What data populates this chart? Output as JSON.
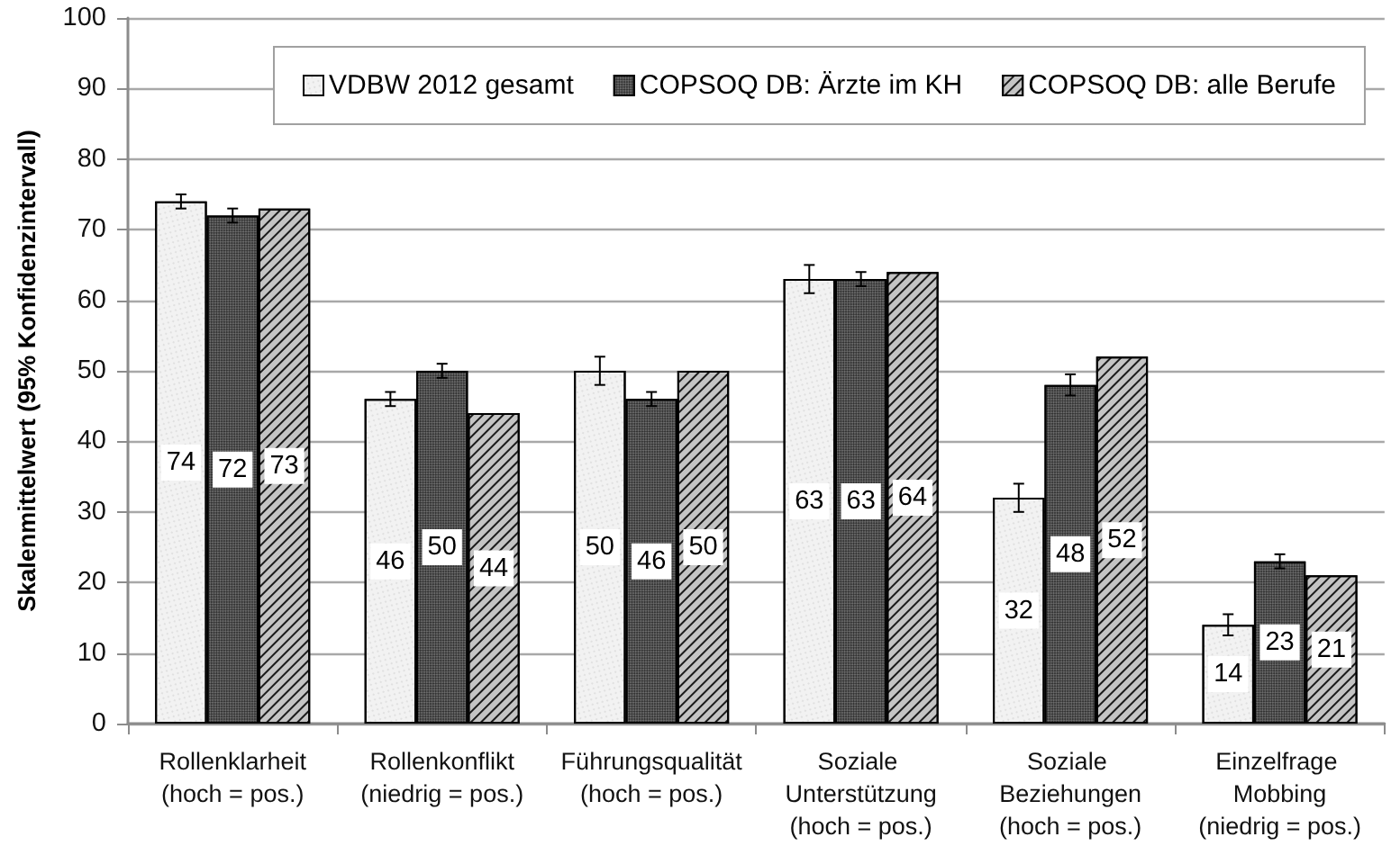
{
  "chart_data": {
    "type": "bar",
    "ylabel": "Skalenmittelwert (95% Konfidenzintervall)",
    "categories": [
      "Rollenklarheit (hoch = pos.)",
      "Rollenkonflikt (niedrig = pos.)",
      "Führungsqualität (hoch = pos.)",
      "Soziale Unterstützung (hoch = pos.)",
      "Soziale Beziehungen (hoch = pos.)",
      "Einzelfrage Mobbing (niedrig = pos.)"
    ],
    "series": [
      {
        "name": "VDBW 2012 gesamt",
        "color": "#f2f2f2",
        "values": [
          74,
          46,
          50,
          63,
          32,
          14
        ],
        "errors": [
          1,
          1,
          2,
          2,
          2,
          1.5
        ]
      },
      {
        "name": "COPSOQ DB: Ärzte im KH",
        "color": "#6b6b6b",
        "values": [
          72,
          50,
          46,
          63,
          48,
          23
        ],
        "errors": [
          1,
          1,
          1,
          1,
          1.5,
          1
        ]
      },
      {
        "name": "COPSOQ DB: alle Berufe",
        "color": "#c4c4c4",
        "values": [
          73,
          44,
          50,
          64,
          52,
          21
        ]
      }
    ],
    "ylim": [
      0,
      100
    ],
    "yticks": [
      0,
      10,
      20,
      30,
      40,
      50,
      60,
      70,
      80,
      90,
      100
    ],
    "grid": "y",
    "legend": "top",
    "data_labels": true
  }
}
